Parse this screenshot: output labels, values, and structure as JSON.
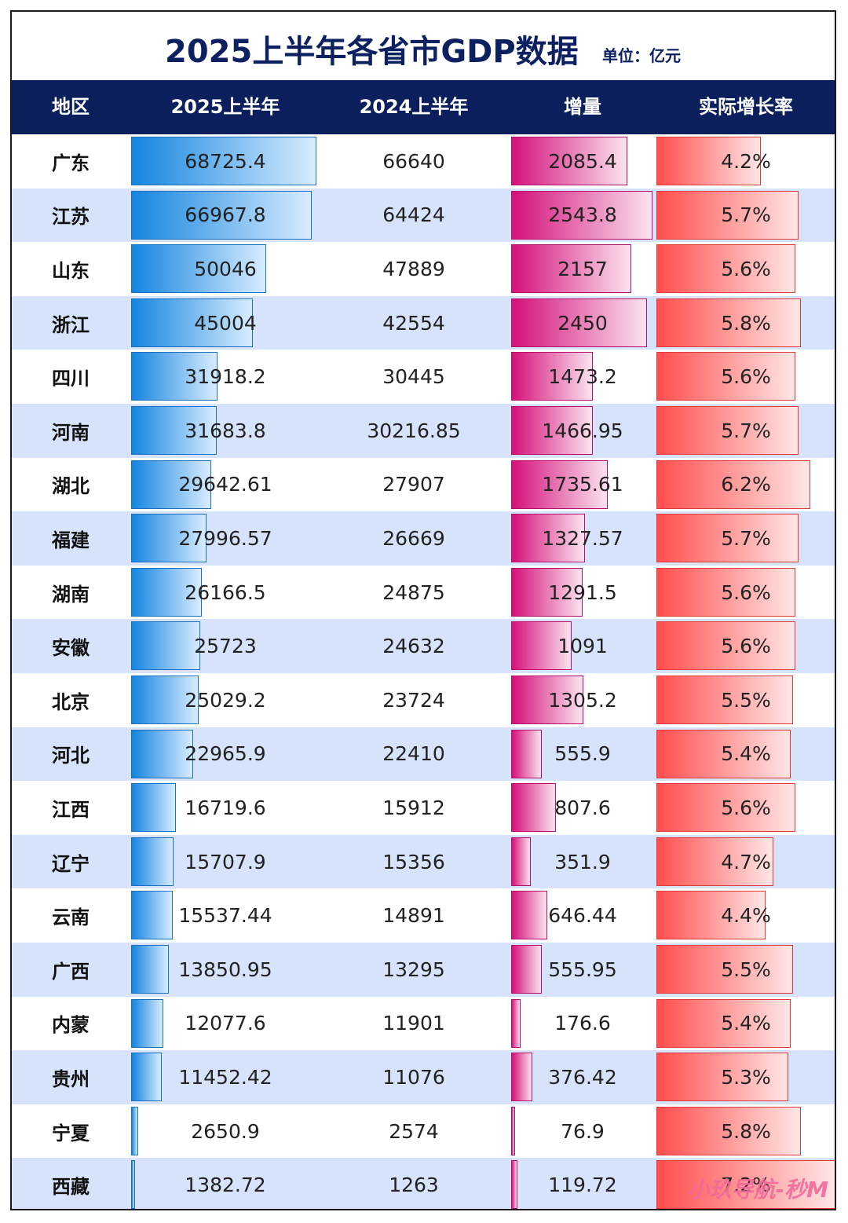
{
  "title": "2025上半年各省市GDP数据",
  "unit": "单位：亿元",
  "watermark": "小玖导航-秒M",
  "colors": {
    "header_bg": "#0a1f5c",
    "alt_row": "#d6e3fb",
    "bar_2025": "#1485e0",
    "bar_increase": "#d4107a",
    "bar_growth": "#ff4d4d"
  },
  "chart_data": {
    "type": "table",
    "columns": [
      "地区",
      "2025上半年",
      "2024上半年",
      "增量",
      "实际增长率"
    ],
    "rows": [
      {
        "region": "广东",
        "gdp2025": "68725.4",
        "gdp2024": "66640",
        "increase": "2085.4",
        "growth": "4.2%"
      },
      {
        "region": "江苏",
        "gdp2025": "66967.8",
        "gdp2024": "64424",
        "increase": "2543.8",
        "growth": "5.7%"
      },
      {
        "region": "山东",
        "gdp2025": "50046",
        "gdp2024": "47889",
        "increase": "2157",
        "growth": "5.6%"
      },
      {
        "region": "浙江",
        "gdp2025": "45004",
        "gdp2024": "42554",
        "increase": "2450",
        "growth": "5.8%"
      },
      {
        "region": "四川",
        "gdp2025": "31918.2",
        "gdp2024": "30445",
        "increase": "1473.2",
        "growth": "5.6%"
      },
      {
        "region": "河南",
        "gdp2025": "31683.8",
        "gdp2024": "30216.85",
        "increase": "1466.95",
        "growth": "5.7%"
      },
      {
        "region": "湖北",
        "gdp2025": "29642.61",
        "gdp2024": "27907",
        "increase": "1735.61",
        "growth": "6.2%"
      },
      {
        "region": "福建",
        "gdp2025": "27996.57",
        "gdp2024": "26669",
        "increase": "1327.57",
        "growth": "5.7%"
      },
      {
        "region": "湖南",
        "gdp2025": "26166.5",
        "gdp2024": "24875",
        "increase": "1291.5",
        "growth": "5.6%"
      },
      {
        "region": "安徽",
        "gdp2025": "25723",
        "gdp2024": "24632",
        "increase": "1091",
        "growth": "5.6%"
      },
      {
        "region": "北京",
        "gdp2025": "25029.2",
        "gdp2024": "23724",
        "increase": "1305.2",
        "growth": "5.5%"
      },
      {
        "region": "河北",
        "gdp2025": "22965.9",
        "gdp2024": "22410",
        "increase": "555.9",
        "growth": "5.4%"
      },
      {
        "region": "江西",
        "gdp2025": "16719.6",
        "gdp2024": "15912",
        "increase": "807.6",
        "growth": "5.6%"
      },
      {
        "region": "辽宁",
        "gdp2025": "15707.9",
        "gdp2024": "15356",
        "increase": "351.9",
        "growth": "4.7%"
      },
      {
        "region": "云南",
        "gdp2025": "15537.44",
        "gdp2024": "14891",
        "increase": "646.44",
        "growth": "4.4%"
      },
      {
        "region": "广西",
        "gdp2025": "13850.95",
        "gdp2024": "13295",
        "increase": "555.95",
        "growth": "5.5%"
      },
      {
        "region": "内蒙",
        "gdp2025": "12077.6",
        "gdp2024": "11901",
        "increase": "176.6",
        "growth": "5.4%"
      },
      {
        "region": "贵州",
        "gdp2025": "11452.42",
        "gdp2024": "11076",
        "increase": "376.42",
        "growth": "5.3%"
      },
      {
        "region": "宁夏",
        "gdp2025": "2650.9",
        "gdp2024": "2574",
        "increase": "76.9",
        "growth": "5.8%"
      },
      {
        "region": "西藏",
        "gdp2025": "1382.72",
        "gdp2024": "1263",
        "increase": "119.72",
        "growth": "7.2%"
      }
    ]
  }
}
